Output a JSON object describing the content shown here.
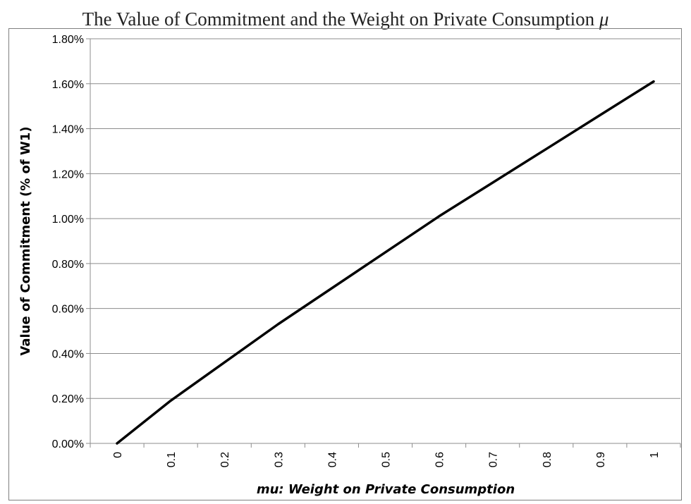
{
  "chart_data": {
    "type": "line",
    "title": "The Value of Commitment and the Weight on Private Consumption",
    "title_symbol": "μ",
    "xlabel": "mu: Weight on Private Consumption",
    "ylabel": "Value of Commitment (% of W1)",
    "categories": [
      "0",
      "0.1",
      "0.2",
      "0.3",
      "0.4",
      "0.5",
      "0.6",
      "0.7",
      "0.8",
      "0.9",
      "1"
    ],
    "x": [
      0,
      0.1,
      0.2,
      0.3,
      0.4,
      0.5,
      0.6,
      0.7,
      0.8,
      0.9,
      1
    ],
    "values": [
      0.0,
      0.19,
      0.36,
      0.53,
      0.69,
      0.85,
      1.01,
      1.16,
      1.31,
      1.46,
      1.61
    ],
    "y_unit": "%",
    "ylim": [
      0,
      1.8
    ],
    "y_ticks": [
      "0.00%",
      "0.20%",
      "0.40%",
      "0.60%",
      "0.80%",
      "1.00%",
      "1.20%",
      "1.40%",
      "1.60%",
      "1.80%"
    ],
    "grid": "horizontal",
    "legend": "none",
    "line_color": "#000000",
    "grid_color": "#8c8c8c"
  }
}
